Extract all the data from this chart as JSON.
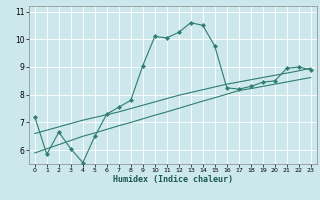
{
  "xlabel": "Humidex (Indice chaleur)",
  "xlim": [
    -0.5,
    23.5
  ],
  "ylim": [
    5.5,
    11.2
  ],
  "yticks": [
    6,
    7,
    8,
    9,
    10,
    11
  ],
  "xticks": [
    0,
    1,
    2,
    3,
    4,
    5,
    6,
    7,
    8,
    9,
    10,
    11,
    12,
    13,
    14,
    15,
    16,
    17,
    18,
    19,
    20,
    21,
    22,
    23
  ],
  "background_color": "#cce8ec",
  "grid_color": "#b0d8dc",
  "line_color": "#2e7d6e",
  "line1_x": [
    0,
    1,
    2,
    3,
    4,
    5,
    6,
    7,
    8,
    9,
    10,
    11,
    12,
    13,
    14,
    15,
    16,
    17,
    18,
    19,
    20,
    21,
    22,
    23
  ],
  "line1_y": [
    7.2,
    5.85,
    6.65,
    6.05,
    5.55,
    6.5,
    7.3,
    7.55,
    7.8,
    9.05,
    10.1,
    10.05,
    10.25,
    10.6,
    10.5,
    9.75,
    8.25,
    8.2,
    8.3,
    8.45,
    8.5,
    8.95,
    9.0,
    8.9
  ],
  "line2_x": [
    0,
    1,
    2,
    3,
    4,
    5,
    6,
    7,
    8,
    9,
    10,
    11,
    12,
    13,
    14,
    15,
    16,
    17,
    18,
    19,
    20,
    21,
    22,
    23
  ],
  "line2_y": [
    5.9,
    6.05,
    6.2,
    6.35,
    6.5,
    6.62,
    6.75,
    6.88,
    7.0,
    7.13,
    7.26,
    7.38,
    7.51,
    7.64,
    7.77,
    7.89,
    8.02,
    8.15,
    8.22,
    8.3,
    8.38,
    8.46,
    8.54,
    8.62
  ],
  "line3_x": [
    0,
    1,
    2,
    3,
    4,
    5,
    6,
    7,
    8,
    9,
    10,
    11,
    12,
    13,
    14,
    15,
    16,
    17,
    18,
    19,
    20,
    21,
    22,
    23
  ],
  "line3_y": [
    6.6,
    6.72,
    6.84,
    6.96,
    7.08,
    7.18,
    7.28,
    7.38,
    7.5,
    7.62,
    7.74,
    7.86,
    7.98,
    8.08,
    8.18,
    8.28,
    8.38,
    8.46,
    8.54,
    8.62,
    8.7,
    8.78,
    8.86,
    8.96
  ]
}
